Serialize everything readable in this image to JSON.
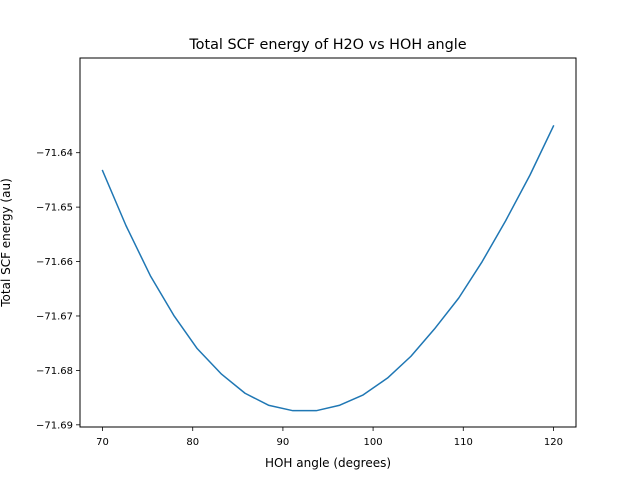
{
  "chart_data": {
    "type": "line",
    "title": "Total SCF energy of H2O vs HOH angle",
    "xlabel": "HOH angle (degrees)",
    "ylabel": "Total SCF energy (au)",
    "xlim": [
      67.5,
      122.5
    ],
    "ylim": [
      -71.6904,
      -71.6226
    ],
    "xticks": [
      70,
      80,
      90,
      100,
      110,
      120
    ],
    "xtick_labels": [
      "70",
      "80",
      "90",
      "100",
      "110",
      "120"
    ],
    "yticks": [
      -71.64,
      -71.65,
      -71.66,
      -71.67,
      -71.68,
      -71.69
    ],
    "ytick_labels": [
      "−71.64",
      "−71.65",
      "−71.66",
      "−71.67",
      "−71.68",
      "−71.69"
    ],
    "grid": false,
    "line_color": "#1f77b4",
    "series": [
      {
        "x": [
          70,
          72.6,
          75.3,
          77.9,
          80.5,
          83.2,
          85.8,
          88.4,
          91.1,
          93.7,
          96.3,
          98.9,
          101.6,
          104.2,
          106.8,
          109.5,
          112.1,
          114.7,
          117.4,
          120
        ],
        "y": [
          -71.6433,
          -71.6534,
          -71.6626,
          -71.6699,
          -71.676,
          -71.6807,
          -71.6842,
          -71.6864,
          -71.6874,
          -71.6874,
          -71.6864,
          -71.6845,
          -71.6814,
          -71.6774,
          -71.6724,
          -71.6667,
          -71.66,
          -71.6525,
          -71.6441,
          -71.6351
        ]
      }
    ]
  }
}
